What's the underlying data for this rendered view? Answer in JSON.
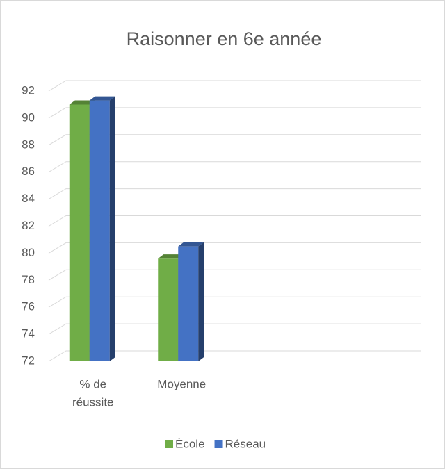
{
  "chart_data": {
    "type": "bar3d",
    "title": "Raisonner en 6e année",
    "categories": [
      [
        "% de",
        "réussite"
      ],
      "Moyenne",
      null,
      null
    ],
    "series": [
      {
        "name": "École",
        "color": "#70ad47",
        "values": [
          91,
          79.6,
          null,
          null
        ]
      },
      {
        "name": "Réseau",
        "color": "#4472c4",
        "values": [
          91.3,
          80.5,
          null,
          null
        ]
      }
    ],
    "ylim": [
      72,
      92
    ],
    "yticks": [
      72,
      74,
      76,
      78,
      80,
      82,
      84,
      86,
      88,
      90,
      92
    ],
    "grid": true,
    "legend": "bottom"
  }
}
